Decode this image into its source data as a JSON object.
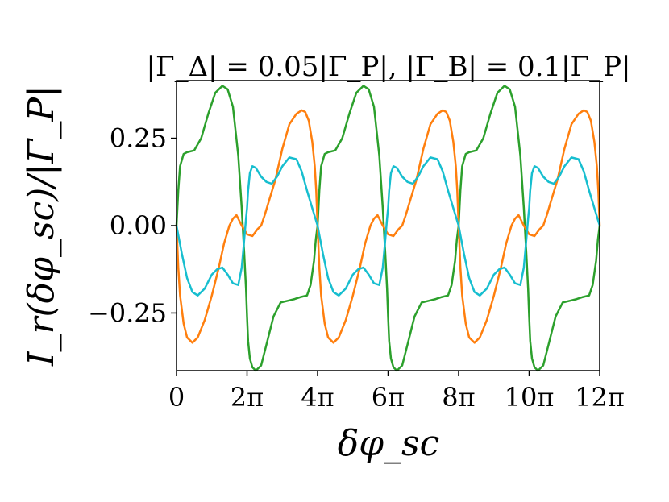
{
  "chart_data": {
    "type": "line",
    "title": "|Γ_Δ| = 0.05|Γ_P|, |Γ_B| = 0.1|Γ_P|",
    "xlabel": "δφ_sc",
    "ylabel": "I_r(δφ_sc)/|Γ_P|",
    "xlim": [
      0,
      12
    ],
    "ylim": [
      -0.415,
      0.415
    ],
    "x_unit": "π",
    "x_ticks": [
      {
        "value": 0,
        "label": "0"
      },
      {
        "value": 2,
        "label": "2π"
      },
      {
        "value": 4,
        "label": "4π"
      },
      {
        "value": 6,
        "label": "6π"
      },
      {
        "value": 8,
        "label": "8π"
      },
      {
        "value": 10,
        "label": "10π"
      },
      {
        "value": 12,
        "label": "12π"
      }
    ],
    "y_ticks": [
      {
        "value": 0.25,
        "label": "0.25"
      },
      {
        "value": 0.0,
        "label": "0.00"
      },
      {
        "value": -0.25,
        "label": "−0.25"
      }
    ],
    "grid": false,
    "legend": "none",
    "period": 4,
    "series": [
      {
        "color": "#2ca02c",
        "x": [
          0,
          0.05,
          0.1,
          0.2,
          0.3,
          0.5,
          0.7,
          0.9,
          1.1,
          1.3,
          1.45,
          1.6,
          1.75,
          1.85,
          1.92,
          1.97,
          2.0,
          2.03,
          2.08,
          2.15,
          2.25,
          2.4,
          2.55,
          2.75,
          2.95,
          3.15,
          3.35,
          3.5,
          3.7,
          3.8,
          3.9,
          3.95,
          4.0
        ],
        "y": [
          0,
          0.1,
          0.17,
          0.205,
          0.21,
          0.215,
          0.25,
          0.32,
          0.38,
          0.4,
          0.39,
          0.34,
          0.2,
          0.05,
          -0.08,
          -0.18,
          -0.26,
          -0.33,
          -0.38,
          -0.405,
          -0.415,
          -0.4,
          -0.34,
          -0.26,
          -0.22,
          -0.215,
          -0.21,
          -0.205,
          -0.2,
          -0.17,
          -0.1,
          -0.04,
          0
        ]
      },
      {
        "color": "#ff7f0e",
        "x": [
          0,
          0.05,
          0.1,
          0.2,
          0.3,
          0.45,
          0.6,
          0.8,
          1.0,
          1.2,
          1.35,
          1.5,
          1.6,
          1.7,
          1.85,
          2.0,
          2.15,
          2.3,
          2.4,
          2.5,
          2.65,
          2.8,
          3.0,
          3.2,
          3.4,
          3.55,
          3.65,
          3.75,
          3.85,
          3.92,
          3.96,
          4.0
        ],
        "y": [
          0,
          -0.12,
          -0.2,
          -0.28,
          -0.32,
          -0.335,
          -0.32,
          -0.27,
          -0.2,
          -0.12,
          -0.05,
          0.0,
          0.02,
          0.03,
          0.0,
          -0.025,
          -0.03,
          -0.01,
          0.0,
          0.03,
          0.08,
          0.13,
          0.22,
          0.29,
          0.32,
          0.33,
          0.325,
          0.3,
          0.24,
          0.17,
          0.1,
          0
        ]
      },
      {
        "color": "#17becf",
        "x": [
          0,
          0.15,
          0.3,
          0.45,
          0.6,
          0.8,
          1.0,
          1.15,
          1.3,
          1.45,
          1.6,
          1.75,
          1.85,
          1.92,
          1.97,
          2.0,
          2.03,
          2.08,
          2.15,
          2.25,
          2.4,
          2.55,
          2.7,
          2.85,
          3.0,
          3.2,
          3.4,
          3.55,
          3.7,
          3.85,
          4.0
        ],
        "y": [
          0,
          -0.08,
          -0.15,
          -0.19,
          -0.2,
          -0.18,
          -0.14,
          -0.125,
          -0.12,
          -0.14,
          -0.165,
          -0.17,
          -0.12,
          -0.04,
          0.02,
          0.05,
          0.1,
          0.15,
          0.17,
          0.165,
          0.14,
          0.125,
          0.12,
          0.14,
          0.17,
          0.195,
          0.19,
          0.155,
          0.1,
          0.05,
          0
        ]
      }
    ]
  }
}
